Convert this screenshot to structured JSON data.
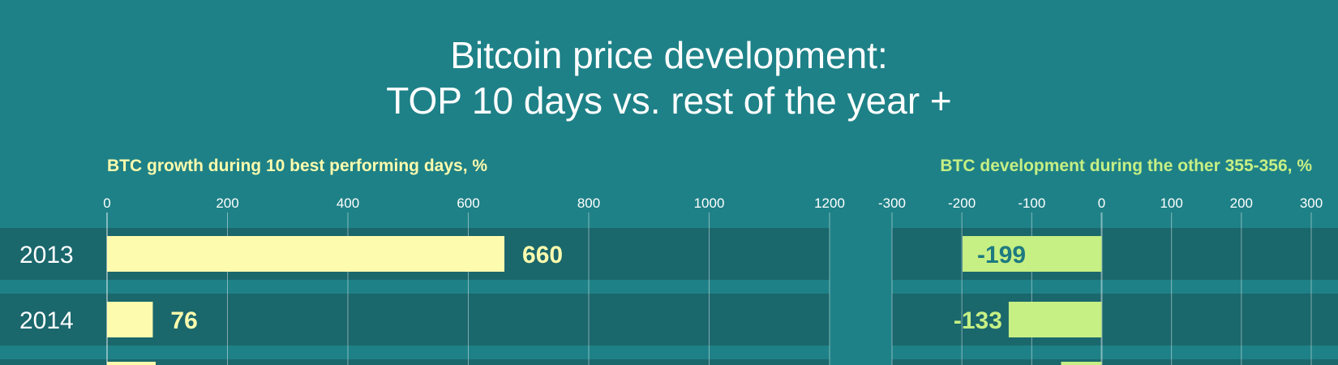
{
  "title_lines": [
    "Bitcoin price development:",
    "TOP 10 days vs. rest of the year +"
  ],
  "colors": {
    "background": "#1e8187",
    "row_band": "#1a676c",
    "left_bar": "#fdfbad",
    "right_bar": "#c6ef84",
    "left_label": "#fdfbad",
    "right_label_inside": "#1e7a80",
    "right_label_outside": "#c6ef84",
    "axis_text": "#ffffff"
  },
  "chart_data": [
    {
      "type": "bar",
      "orientation": "horizontal",
      "title": "BTC growth during 10 best performing days, %",
      "categories": [
        "2013",
        "2014"
      ],
      "values": [
        660,
        76
      ],
      "xlim": [
        0,
        1200
      ],
      "ticks": [
        0,
        200,
        400,
        600,
        800,
        1000,
        1200
      ],
      "grid": true
    },
    {
      "type": "bar",
      "orientation": "horizontal",
      "title": "BTC development during the other 355-356, %",
      "categories": [
        "2013",
        "2014"
      ],
      "values": [
        -199,
        -133
      ],
      "xlim": [
        -300,
        300
      ],
      "ticks": [
        -300,
        -200,
        -100,
        0,
        100,
        200,
        300
      ],
      "grid": true
    }
  ]
}
